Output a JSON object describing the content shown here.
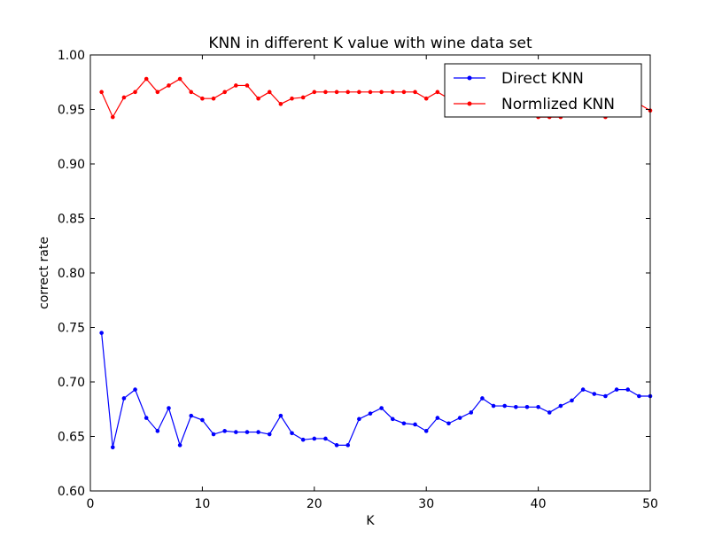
{
  "chart_data": {
    "type": "line",
    "title": "KNN in different K value with wine data set",
    "xlabel": "K",
    "ylabel": "correct rate",
    "xlim": [
      0,
      50
    ],
    "ylim": [
      0.6,
      1.0
    ],
    "xticks": [
      "0",
      "10",
      "20",
      "30",
      "40",
      "50"
    ],
    "yticks": [
      "0.60",
      "0.65",
      "0.70",
      "0.75",
      "0.80",
      "0.85",
      "0.90",
      "0.95",
      "1.00"
    ],
    "grid": false,
    "legend_position": "top-right",
    "x": [
      1,
      2,
      3,
      4,
      5,
      6,
      7,
      8,
      9,
      10,
      11,
      12,
      13,
      14,
      15,
      16,
      17,
      18,
      19,
      20,
      21,
      22,
      23,
      24,
      25,
      26,
      27,
      28,
      29,
      30,
      31,
      32,
      33,
      34,
      35,
      36,
      37,
      38,
      39,
      40,
      41,
      42,
      43,
      44,
      45,
      46,
      47,
      48,
      49,
      50
    ],
    "series": [
      {
        "name": "Direct KNN",
        "color": "#0000ff",
        "values": [
          0.745,
          0.64,
          0.685,
          0.693,
          0.667,
          0.655,
          0.676,
          0.642,
          0.669,
          0.665,
          0.652,
          0.655,
          0.654,
          0.654,
          0.654,
          0.652,
          0.669,
          0.653,
          0.647,
          0.648,
          0.648,
          0.642,
          0.642,
          0.666,
          0.671,
          0.676,
          0.666,
          0.662,
          0.661,
          0.655,
          0.667,
          0.662,
          0.667,
          0.672,
          0.685,
          0.678,
          0.678,
          0.677,
          0.677,
          0.677,
          0.672,
          0.678,
          0.683,
          0.693,
          0.689,
          0.687,
          0.693,
          0.693,
          0.687,
          0.687
        ]
      },
      {
        "name": "Normlized KNN",
        "color": "#ff0000",
        "values": [
          0.966,
          0.943,
          0.961,
          0.966,
          0.978,
          0.966,
          0.972,
          0.978,
          0.966,
          0.96,
          0.96,
          0.966,
          0.972,
          0.972,
          0.96,
          0.966,
          0.955,
          0.96,
          0.961,
          0.966,
          0.966,
          0.966,
          0.966,
          0.966,
          0.966,
          0.966,
          0.966,
          0.966,
          0.966,
          0.96,
          0.966,
          0.96,
          0.96,
          0.955,
          0.955,
          0.955,
          0.949,
          0.949,
          0.949,
          0.943,
          0.943,
          0.943,
          0.949,
          0.949,
          0.949,
          0.943,
          0.949,
          0.955,
          0.955,
          0.949
        ]
      }
    ]
  }
}
